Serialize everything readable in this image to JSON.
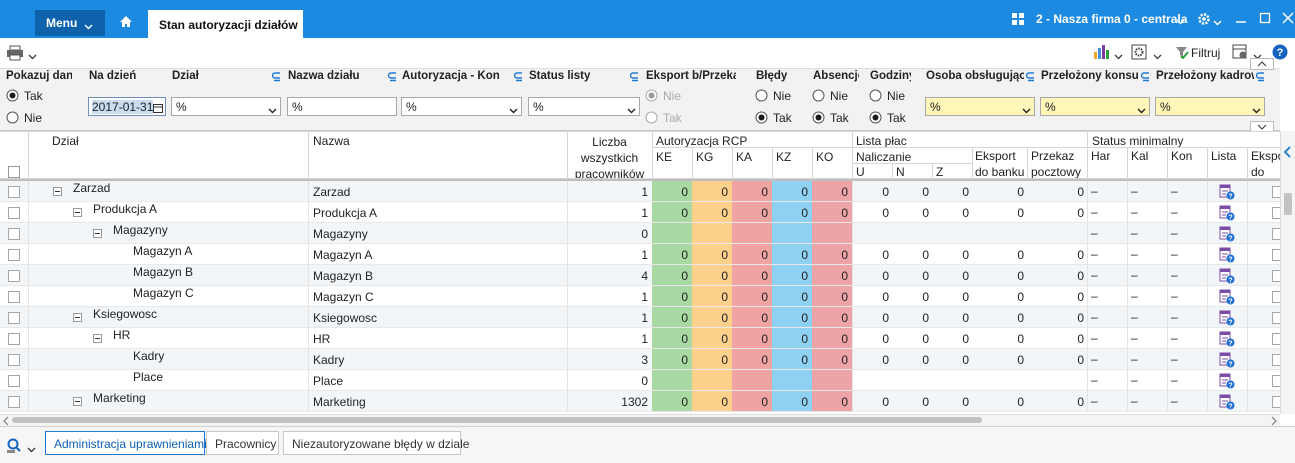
{
  "header": {
    "menu": "Menu",
    "active_tab": "Stan autoryzacji działów",
    "company": "2 - Nasza firma 0 - centrala"
  },
  "toolbar": {
    "filter_button": "Filtruj"
  },
  "filters": {
    "show_data": {
      "label": "Pokazuj dane",
      "options": [
        "Tak",
        "Nie"
      ],
      "selected": 0
    },
    "date": {
      "label": "Na dzień",
      "value": "2017-01-31"
    },
    "department": {
      "label": "Dział",
      "value": "%"
    },
    "department_name": {
      "label": "Nazwa działu",
      "value": "%"
    },
    "authorization": {
      "label": "Autoryzacja  - Kon",
      "value": "%"
    },
    "list_status": {
      "label": "Status listy",
      "value": "%"
    },
    "export": {
      "label": "Eksport b/Przekaz",
      "options": [
        "Nie",
        "Tak"
      ],
      "selected": 0,
      "disabled": true
    },
    "errors": {
      "label": "Błędy",
      "options": [
        "Nie",
        "Tak"
      ],
      "selected": 1
    },
    "absences": {
      "label": "Absencje",
      "options": [
        "Nie",
        "Tak"
      ],
      "selected": 1
    },
    "hours": {
      "label": "Godziny",
      "options": [
        "Nie",
        "Tak"
      ],
      "selected": 1
    },
    "supervisor": {
      "label": "Osoba obsługująca",
      "value": "%"
    },
    "consultant": {
      "label": "Przełożony konsulta",
      "value": "%"
    },
    "hr_supervisor": {
      "label": "Przełożony kadrowe",
      "value": "%"
    }
  },
  "grid": {
    "columns": {
      "department": "Dział",
      "name": "Nazwa",
      "count": "Liczba wszystkich pracowników",
      "rcp_group": "Autoryzacja RCP",
      "rcp": [
        "KE",
        "KG",
        "KA",
        "KZ",
        "KO"
      ],
      "payroll_group": "Lista płac",
      "calculation": "Naliczanie",
      "calc": [
        "U",
        "N",
        "Z"
      ],
      "bank_export": "Eksport do banku",
      "postal": "Przekaz pocztowy",
      "status_group": "Status minimalny",
      "status": [
        "Har",
        "Kal",
        "Kon",
        "Lista",
        "Eksport do banku"
      ]
    },
    "rows": [
      {
        "department": "Zarzad",
        "name": "Zarzad",
        "count": 1,
        "rcp": [
          0,
          0,
          0,
          0,
          0
        ],
        "payroll": [
          0,
          0,
          0,
          0,
          0
        ],
        "status": [
          "–",
          "–",
          "–"
        ],
        "children": [
          {
            "department": "Produkcja A",
            "name": "Produkcja A",
            "count": 1,
            "rcp": [
              0,
              0,
              0,
              0,
              0
            ],
            "payroll": [
              0,
              0,
              0,
              0,
              0
            ],
            "status": [
              "–",
              "–",
              "–"
            ],
            "children": [
              {
                "department": "Magazyny",
                "name": "Magazyny",
                "count": 0,
                "status": [
                  "–",
                  "–",
                  "–"
                ],
                "children": [
                  {
                    "department": "Magazyn A",
                    "name": "Magazyn A",
                    "count": 1,
                    "rcp": [
                      0,
                      0,
                      0,
                      0,
                      0
                    ],
                    "payroll": [
                      0,
                      0,
                      0,
                      0,
                      0
                    ],
                    "status": [
                      "–",
                      "–",
                      "–"
                    ]
                  },
                  {
                    "department": "Magazyn B",
                    "name": "Magazyn B",
                    "count": 4,
                    "rcp": [
                      0,
                      0,
                      0,
                      0,
                      0
                    ],
                    "payroll": [
                      0,
                      0,
                      0,
                      0,
                      0
                    ],
                    "status": [
                      "–",
                      "–",
                      "–"
                    ]
                  },
                  {
                    "department": "Magazyn C",
                    "name": "Magazyn C",
                    "count": 1,
                    "rcp": [
                      0,
                      0,
                      0,
                      0,
                      0
                    ],
                    "payroll": [
                      0,
                      0,
                      0,
                      0,
                      0
                    ],
                    "status": [
                      "–",
                      "–",
                      "–"
                    ]
                  }
                ]
              }
            ]
          },
          {
            "department": "Ksiegowosc",
            "name": "Ksiegowosc",
            "count": 1,
            "rcp": [
              0,
              0,
              0,
              0,
              0
            ],
            "payroll": [
              0,
              0,
              0,
              0,
              0
            ],
            "status": [
              "–",
              "–",
              "–"
            ],
            "children": [
              {
                "department": "HR",
                "name": "HR",
                "count": 1,
                "rcp": [
                  0,
                  0,
                  0,
                  0,
                  0
                ],
                "payroll": [
                  0,
                  0,
                  0,
                  0,
                  0
                ],
                "status": [
                  "–",
                  "–",
                  "–"
                ],
                "children": [
                  {
                    "department": "Kadry",
                    "name": "Kadry",
                    "count": 3,
                    "rcp": [
                      0,
                      0,
                      0,
                      0,
                      0
                    ],
                    "payroll": [
                      0,
                      0,
                      0,
                      0,
                      0
                    ],
                    "status": [
                      "–",
                      "–",
                      "–"
                    ]
                  },
                  {
                    "department": "Place",
                    "name": "Place",
                    "count": 0,
                    "status": [
                      "–",
                      "–",
                      "–"
                    ]
                  }
                ]
              }
            ]
          },
          {
            "department": "Marketing",
            "name": "Marketing",
            "count": 1302,
            "rcp": [
              0,
              0,
              0,
              0,
              0
            ],
            "payroll": [
              0,
              0,
              0,
              0,
              0
            ],
            "status": [
              "–",
              "–",
              "–"
            ],
            "children": []
          }
        ]
      }
    ]
  },
  "bottom_tabs": [
    "Administracja uprawnieniami",
    "Pracownicy",
    "Niezautoryzowane błędy w dziale"
  ],
  "active_bottom_tab": 0
}
